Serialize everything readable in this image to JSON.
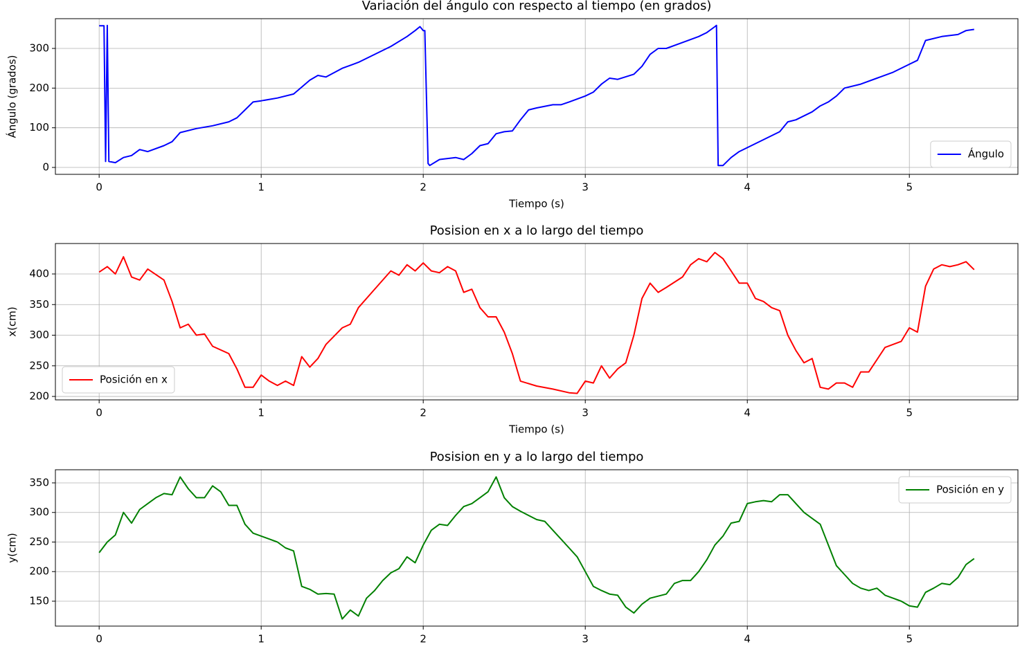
{
  "chart_data": [
    {
      "type": "line",
      "title": "Variación del ángulo con respecto al tiempo (en grados)",
      "x_label": "Tiempo (s)",
      "y_label": "Ángulo (grados)",
      "x": [
        0,
        0.02,
        0.03,
        0.04,
        0.05,
        0.06,
        0.1,
        0.15,
        0.2,
        0.25,
        0.3,
        0.4,
        0.45,
        0.5,
        0.6,
        0.7,
        0.8,
        0.85,
        0.9,
        0.95,
        1.0,
        1.1,
        1.2,
        1.3,
        1.35,
        1.4,
        1.5,
        1.6,
        1.7,
        1.8,
        1.9,
        1.95,
        1.98,
        2.0,
        2.01,
        2.03,
        2.04,
        2.1,
        2.2,
        2.25,
        2.3,
        2.35,
        2.4,
        2.45,
        2.5,
        2.55,
        2.6,
        2.65,
        2.7,
        2.8,
        2.85,
        2.9,
        3.0,
        3.05,
        3.1,
        3.15,
        3.2,
        3.3,
        3.35,
        3.4,
        3.45,
        3.5,
        3.6,
        3.7,
        3.75,
        3.8,
        3.81,
        3.82,
        3.85,
        3.9,
        3.95,
        4.0,
        4.1,
        4.2,
        4.25,
        4.3,
        4.4,
        4.45,
        4.5,
        4.55,
        4.6,
        4.7,
        4.8,
        4.9,
        5.0,
        5.05,
        5.1,
        5.2,
        5.3,
        5.35,
        5.4
      ],
      "series": [
        {
          "name": "Ángulo",
          "color": "#0000ff",
          "values": [
            357,
            357,
            357,
            15,
            358,
            15,
            12,
            25,
            30,
            45,
            40,
            55,
            65,
            88,
            98,
            105,
            115,
            125,
            145,
            165,
            168,
            175,
            185,
            220,
            232,
            228,
            250,
            265,
            285,
            305,
            330,
            345,
            355,
            345,
            345,
            10,
            5,
            20,
            25,
            20,
            35,
            55,
            60,
            85,
            90,
            92,
            120,
            145,
            150,
            158,
            158,
            165,
            180,
            190,
            210,
            225,
            222,
            235,
            255,
            285,
            300,
            300,
            315,
            330,
            340,
            355,
            358,
            5,
            5,
            25,
            40,
            50,
            70,
            90,
            115,
            120,
            140,
            155,
            165,
            180,
            200,
            210,
            225,
            240,
            260,
            270,
            320,
            330,
            335,
            345,
            348
          ]
        }
      ],
      "xlim": [
        -0.27,
        5.67
      ],
      "ylim": [
        -17.4,
        375
      ],
      "xticks": [
        0,
        1,
        2,
        3,
        4,
        5
      ],
      "yticks": [
        0,
        100,
        200,
        300
      ],
      "grid": true,
      "legend": "lower right"
    },
    {
      "type": "line",
      "title": "Posision en x a lo largo del tiempo",
      "x_label": "Tiempo (s)",
      "y_label": "x(cm)",
      "x": [
        0,
        0.05,
        0.1,
        0.15,
        0.2,
        0.25,
        0.3,
        0.4,
        0.45,
        0.5,
        0.55,
        0.6,
        0.65,
        0.7,
        0.8,
        0.85,
        0.9,
        0.95,
        1.0,
        1.05,
        1.1,
        1.15,
        1.2,
        1.25,
        1.3,
        1.35,
        1.4,
        1.5,
        1.55,
        1.6,
        1.7,
        1.8,
        1.85,
        1.9,
        1.95,
        2.0,
        2.05,
        2.1,
        2.15,
        2.2,
        2.25,
        2.3,
        2.35,
        2.4,
        2.45,
        2.5,
        2.55,
        2.6,
        2.7,
        2.8,
        2.9,
        2.95,
        3.0,
        3.05,
        3.1,
        3.15,
        3.2,
        3.25,
        3.3,
        3.35,
        3.4,
        3.45,
        3.5,
        3.6,
        3.65,
        3.7,
        3.75,
        3.8,
        3.85,
        3.9,
        3.95,
        4.0,
        4.05,
        4.1,
        4.15,
        4.2,
        4.25,
        4.3,
        4.35,
        4.4,
        4.45,
        4.5,
        4.55,
        4.6,
        4.65,
        4.7,
        4.75,
        4.8,
        4.85,
        4.9,
        4.95,
        5.0,
        5.05,
        5.1,
        5.15,
        5.2,
        5.25,
        5.3,
        5.35,
        5.4
      ],
      "series": [
        {
          "name": "Posición en x",
          "color": "#ff0000",
          "values": [
            403,
            412,
            400,
            428,
            395,
            390,
            408,
            390,
            355,
            312,
            318,
            300,
            302,
            282,
            270,
            245,
            215,
            215,
            235,
            225,
            218,
            225,
            218,
            265,
            248,
            262,
            285,
            312,
            318,
            345,
            375,
            405,
            398,
            415,
            405,
            418,
            405,
            402,
            412,
            405,
            370,
            375,
            345,
            330,
            330,
            305,
            270,
            225,
            217,
            212,
            206,
            205,
            225,
            222,
            250,
            230,
            245,
            255,
            300,
            360,
            385,
            370,
            378,
            395,
            415,
            425,
            420,
            435,
            425,
            405,
            385,
            385,
            360,
            355,
            345,
            340,
            300,
            275,
            255,
            262,
            215,
            212,
            222,
            222,
            215,
            240,
            240,
            260,
            280,
            285,
            290,
            312,
            305,
            380,
            408,
            415,
            412,
            415,
            420,
            407
          ]
        }
      ],
      "xlim": [
        -0.27,
        5.67
      ],
      "ylim": [
        194.4,
        449.7
      ],
      "xticks": [
        0,
        1,
        2,
        3,
        4,
        5
      ],
      "yticks": [
        200,
        250,
        300,
        350,
        400
      ],
      "grid": true,
      "legend": "lower left"
    },
    {
      "type": "line",
      "title": "Posision en y a lo largo del tiempo",
      "y_label": "y(cm)",
      "x": [
        0,
        0.05,
        0.1,
        0.15,
        0.2,
        0.25,
        0.3,
        0.35,
        0.4,
        0.45,
        0.5,
        0.55,
        0.6,
        0.65,
        0.7,
        0.75,
        0.8,
        0.85,
        0.9,
        0.95,
        1.0,
        1.05,
        1.1,
        1.15,
        1.2,
        1.25,
        1.3,
        1.35,
        1.4,
        1.45,
        1.5,
        1.55,
        1.6,
        1.65,
        1.7,
        1.75,
        1.8,
        1.85,
        1.9,
        1.95,
        2.0,
        2.05,
        2.1,
        2.15,
        2.2,
        2.25,
        2.3,
        2.35,
        2.4,
        2.45,
        2.5,
        2.55,
        2.6,
        2.7,
        2.75,
        2.8,
        2.85,
        2.9,
        2.95,
        3.0,
        3.05,
        3.1,
        3.15,
        3.2,
        3.25,
        3.3,
        3.35,
        3.4,
        3.5,
        3.55,
        3.6,
        3.65,
        3.7,
        3.75,
        3.8,
        3.85,
        3.9,
        3.95,
        4.0,
        4.05,
        4.1,
        4.15,
        4.2,
        4.25,
        4.3,
        4.35,
        4.4,
        4.45,
        4.5,
        4.55,
        4.6,
        4.65,
        4.7,
        4.75,
        4.8,
        4.85,
        4.9,
        4.95,
        5.0,
        5.05,
        5.1,
        5.15,
        5.2,
        5.25,
        5.3,
        5.35,
        5.4
      ],
      "series": [
        {
          "name": "Posición en y",
          "color": "#008000",
          "values": [
            232,
            250,
            262,
            300,
            282,
            305,
            315,
            325,
            332,
            330,
            360,
            340,
            325,
            325,
            345,
            335,
            312,
            312,
            280,
            265,
            260,
            255,
            250,
            240,
            235,
            175,
            170,
            162,
            163,
            162,
            120,
            135,
            125,
            155,
            168,
            185,
            198,
            205,
            225,
            215,
            245,
            270,
            280,
            278,
            295,
            310,
            315,
            325,
            335,
            360,
            325,
            310,
            302,
            288,
            285,
            270,
            255,
            240,
            225,
            200,
            175,
            168,
            162,
            160,
            140,
            130,
            145,
            155,
            162,
            180,
            185,
            185,
            200,
            220,
            245,
            260,
            282,
            285,
            315,
            318,
            320,
            318,
            330,
            330,
            315,
            300,
            290,
            280,
            245,
            210,
            195,
            180,
            172,
            168,
            172,
            160,
            155,
            150,
            142,
            140,
            165,
            172,
            180,
            178,
            190,
            212,
            222
          ]
        }
      ],
      "xlim": [
        -0.27,
        5.67
      ],
      "ylim": [
        107.9,
        372.2
      ],
      "xticks": [
        0,
        1,
        2,
        3,
        4,
        5
      ],
      "yticks": [
        150,
        200,
        250,
        300,
        350
      ],
      "grid": true,
      "legend": "upper right"
    }
  ]
}
